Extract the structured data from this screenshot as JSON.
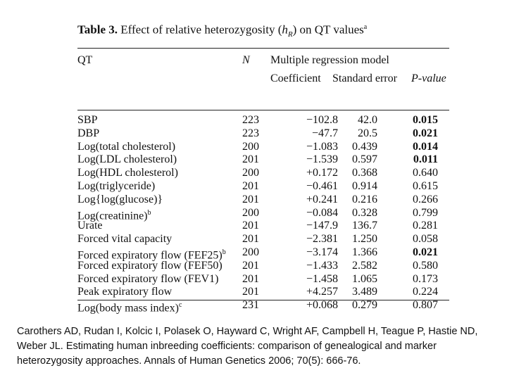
{
  "table": {
    "title_label": "Table 3.",
    "title_text": "Effect of relative heterozygosity (",
    "title_var": "h",
    "title_sub": "R",
    "title_end": ") on QT values",
    "title_note": "a",
    "headers": {
      "qt": "QT",
      "n": "N",
      "model": "Multiple regression model",
      "coefficient": "Coefficient",
      "std_error": "Standard error",
      "p_value": "P-value"
    },
    "rows": [
      {
        "qt": "SBP",
        "n": "223",
        "coef": "−102.8",
        "se": "42.0",
        "p": "0.015",
        "bold": true
      },
      {
        "qt": "DBP",
        "n": "223",
        "coef": "−47.7",
        "se": "20.5",
        "p": "0.021",
        "bold": true
      },
      {
        "qt": "Log(total cholesterol)",
        "n": "200",
        "coef": "−1.083",
        "se": "0.439",
        "p": "0.014",
        "bold": true
      },
      {
        "qt": "Log(LDL cholesterol)",
        "n": "201",
        "coef": "−1.539",
        "se": "0.597",
        "p": "0.011",
        "bold": true
      },
      {
        "qt": "Log(HDL cholesterol)",
        "n": "200",
        "coef": "+0.172",
        "se": "0.368",
        "p": "0.640",
        "bold": false
      },
      {
        "qt": "Log(triglyceride)",
        "n": "201",
        "coef": "−0.461",
        "se": "0.914",
        "p": "0.615",
        "bold": false
      },
      {
        "qt": "Log{log(glucose)}",
        "n": "201",
        "coef": "+0.241",
        "se": "0.216",
        "p": "0.266",
        "bold": false
      },
      {
        "qt": "Log(creatinine)",
        "qt_note": "b",
        "n": "200",
        "coef": "−0.084",
        "se": "0.328",
        "p": "0.799",
        "bold": false
      },
      {
        "qt": "Urate",
        "n": "201",
        "coef": "−147.9",
        "se": "136.7",
        "p": "0.281",
        "bold": false
      },
      {
        "qt": "Forced vital capacity",
        "n": "201",
        "coef": "−2.381",
        "se": "1.250",
        "p": "0.058",
        "bold": false
      },
      {
        "qt": "Forced expiratory flow (FEF25)",
        "qt_note": "b",
        "n": "200",
        "coef": "−3.174",
        "se": "1.366",
        "p": "0.021",
        "bold": true
      },
      {
        "qt": "Forced expiratory flow (FEF50)",
        "n": "201",
        "coef": "−1.433",
        "se": "2.582",
        "p": "0.580",
        "bold": false
      },
      {
        "qt": "Forced expiratory flow (FEV1)",
        "n": "201",
        "coef": "−1.458",
        "se": "1.065",
        "p": "0.173",
        "bold": false
      },
      {
        "qt": "Peak expiratory flow",
        "n": "201",
        "coef": "+4.257",
        "se": "3.489",
        "p": "0.224",
        "bold": false
      },
      {
        "qt": "Log(body mass index)",
        "qt_note": "c",
        "n": "231",
        "coef": "+0.068",
        "se": "0.279",
        "p": "0.807",
        "bold": false
      }
    ]
  },
  "citation": "Carothers AD, Rudan I, Kolcic I, Polasek O, Hayward C, Wright AF, Campbell H, Teague P, Hastie ND, Weber JL. Estimating human inbreeding coefficients: comparison of genealogical and marker heterozygosity approaches. Annals of Human Genetics 2006; 70(5): 666-76."
}
